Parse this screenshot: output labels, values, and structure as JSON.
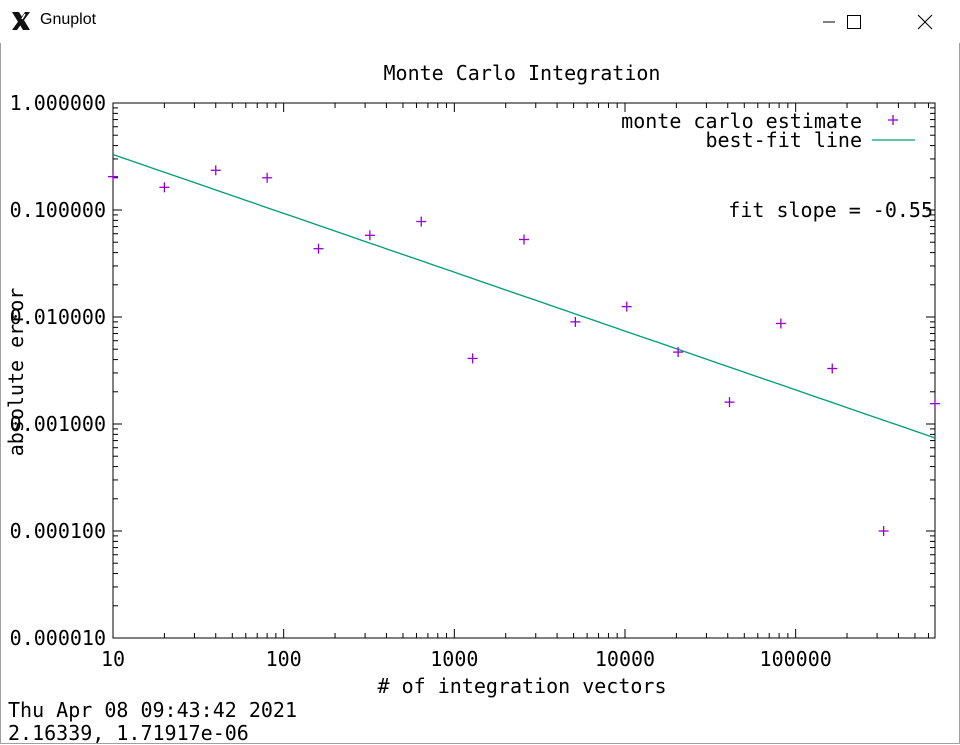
{
  "window": {
    "title": "Gnuplot",
    "app_icon": "x11-icon",
    "controls": [
      "minimize-icon",
      "maximize-icon",
      "close-icon"
    ]
  },
  "status": {
    "timestamp": "Thu Apr 08 09:43:42 2021",
    "mouse_readout": "2.16339,  1.71917e-06"
  },
  "chart_data": {
    "type": "scatter",
    "title": "Monte Carlo Integration",
    "xlabel": "# of integration vectors",
    "ylabel": "absolute error",
    "xscale": "log",
    "yscale": "log",
    "xlim": [
      10,
      655360
    ],
    "ylim": [
      1e-05,
      1.0
    ],
    "x_ticks": [
      "10",
      "100",
      "1000",
      "10000",
      "100000"
    ],
    "y_ticks": [
      "0.000010",
      "0.000100",
      "0.001000",
      "0.010000",
      "0.100000",
      "1.000000"
    ],
    "grid": false,
    "legend_position": "top-right",
    "annotation": "fit slope = -0.55",
    "series": [
      {
        "name": "monte carlo estimate",
        "marker": "plus",
        "color": "#9400d3",
        "points": [
          [
            10,
            0.205
          ],
          [
            20,
            0.163
          ],
          [
            40,
            0.235
          ],
          [
            80,
            0.2
          ],
          [
            160,
            0.0435
          ],
          [
            320,
            0.058
          ],
          [
            640,
            0.078
          ],
          [
            1280,
            0.0041
          ],
          [
            2560,
            0.053
          ],
          [
            5120,
            0.009
          ],
          [
            10240,
            0.0125
          ],
          [
            20480,
            0.0047
          ],
          [
            40960,
            0.0016
          ],
          [
            81920,
            0.0087
          ],
          [
            163840,
            0.0033
          ],
          [
            327680,
            0.0001
          ],
          [
            655360,
            0.00155
          ]
        ]
      },
      {
        "name": "best-fit line",
        "type": "line",
        "color": "#009e73",
        "slope": -0.55,
        "y_at_x10": 0.33
      }
    ]
  }
}
